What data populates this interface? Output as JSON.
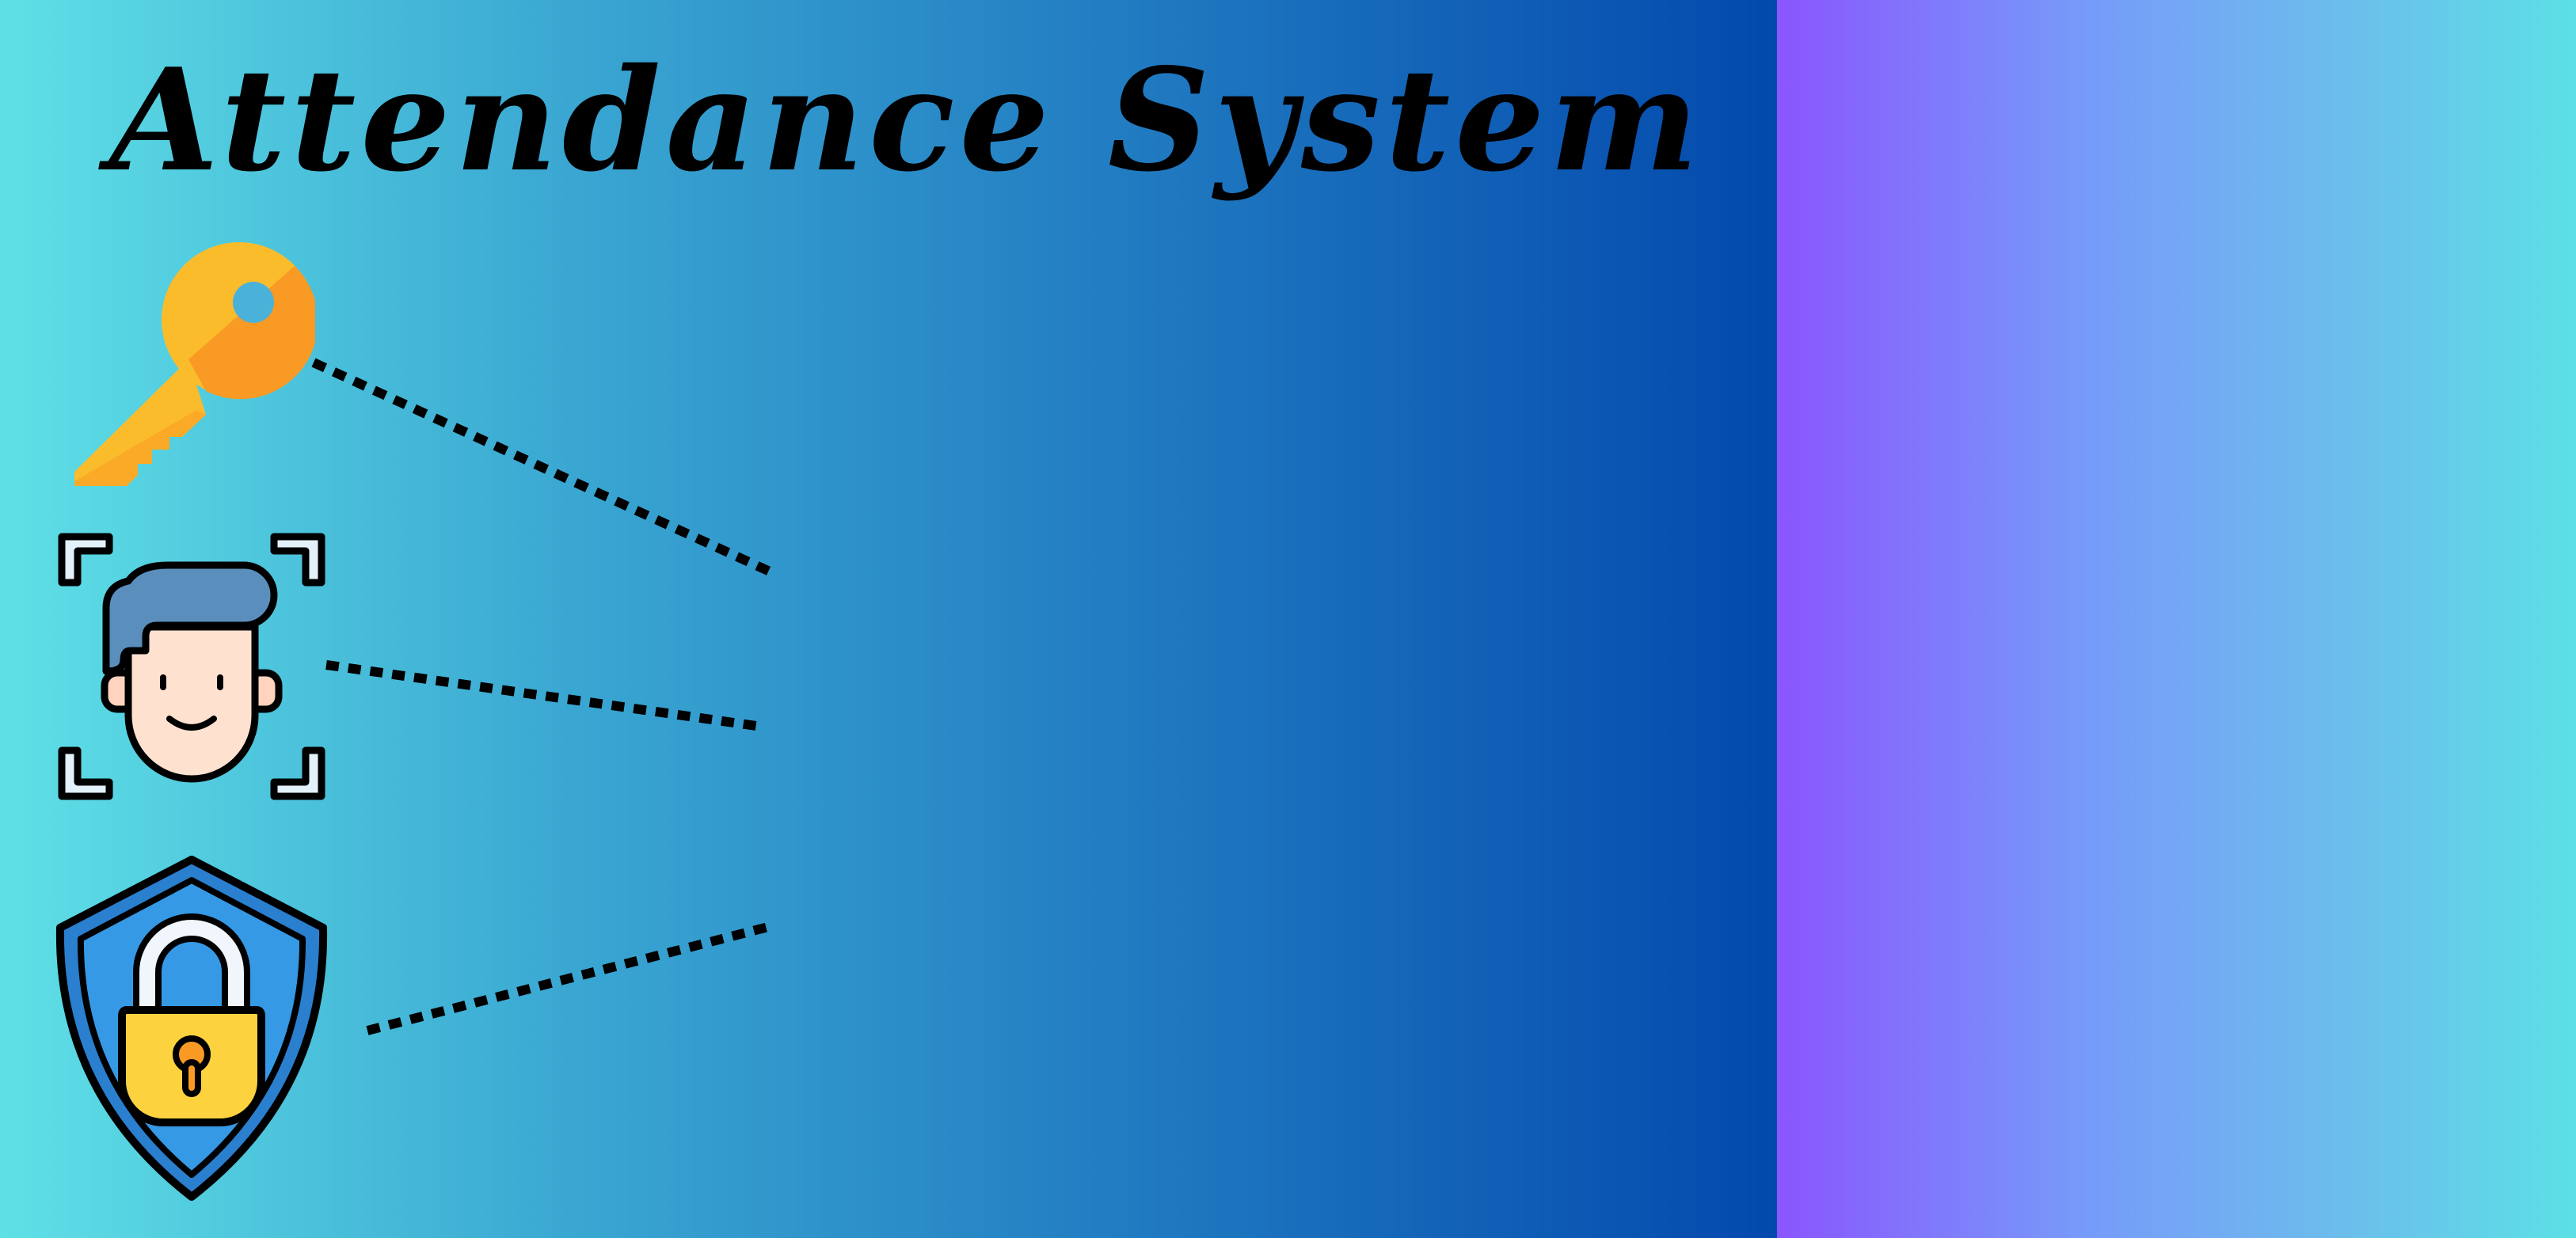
{
  "title": "Attendance System",
  "colors": {
    "left_panel_gradient": [
      "#5fe0e6",
      "#3aa7d2",
      "#1f78c0",
      "#0349ad"
    ],
    "right_panel_gradient": [
      "#8a56fd",
      "#779afa",
      "#6cbcec",
      "#5ce0e6"
    ],
    "key": "#fbbc2c",
    "key_shadow": "#f99a25",
    "face_hair": "#5a8fbd",
    "face_skin": "#ffe1cf",
    "shield": "#2f93df",
    "padlock": "#fdd23f"
  },
  "icons": [
    "key-icon",
    "face-scan-icon",
    "shield-lock-icon"
  ]
}
